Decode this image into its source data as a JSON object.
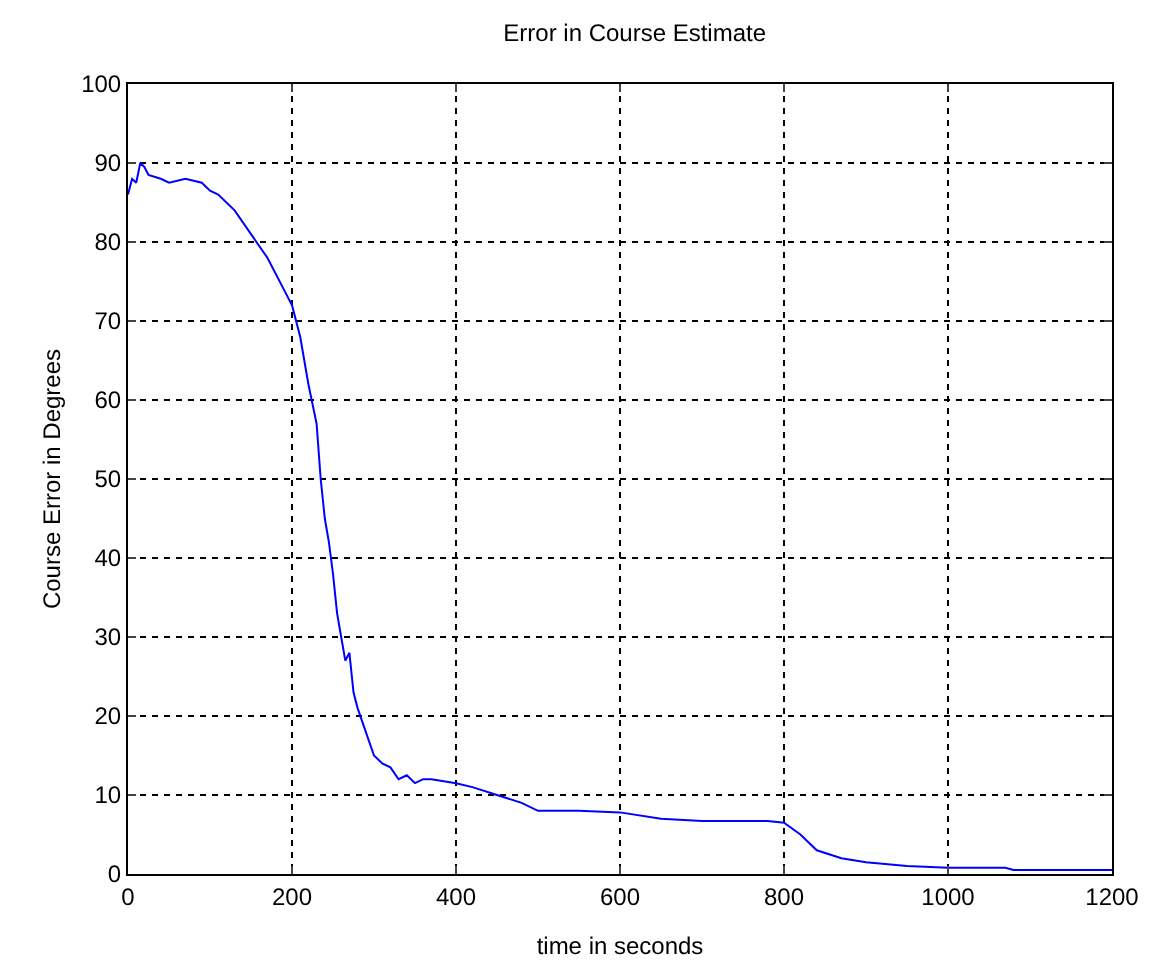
{
  "chart_data": {
    "type": "line",
    "title": "Error in Course Estimate",
    "xlabel": "time in seconds",
    "ylabel": "Course Error in Degrees",
    "x": [
      0,
      5,
      10,
      15,
      20,
      25,
      40,
      50,
      70,
      90,
      100,
      110,
      130,
      150,
      170,
      190,
      200,
      210,
      220,
      230,
      235,
      240,
      245,
      250,
      255,
      260,
      265,
      270,
      275,
      280,
      290,
      300,
      310,
      320,
      330,
      340,
      350,
      360,
      370,
      400,
      420,
      450,
      480,
      500,
      550,
      600,
      650,
      700,
      780,
      800,
      820,
      840,
      870,
      900,
      950,
      1000,
      1070,
      1080,
      1200
    ],
    "series": [
      {
        "color": "#0000ff",
        "values": [
          86,
          88,
          87.5,
          90,
          89.5,
          88.5,
          88,
          87.5,
          88,
          87.5,
          86.5,
          86,
          84,
          81,
          78,
          74,
          72,
          68,
          62,
          57,
          50,
          45,
          42,
          38,
          33,
          30,
          27,
          28,
          23,
          21,
          18,
          15,
          14,
          13.5,
          12,
          12.5,
          11.5,
          12,
          12,
          11.5,
          11,
          10,
          9,
          8,
          8,
          7.8,
          7,
          6.7,
          6.7,
          6.5,
          5,
          3,
          2,
          1.5,
          1,
          0.8,
          0.8,
          0.5,
          0.5
        ]
      }
    ],
    "xlim": [
      0,
      1200
    ],
    "xticks": [
      0,
      200,
      400,
      600,
      800,
      1000,
      1200
    ],
    "ylim": [
      0,
      100
    ],
    "yticks": [
      0,
      10,
      20,
      30,
      40,
      50,
      60,
      70,
      80,
      90,
      100
    ],
    "grid": true,
    "line_style": "solid"
  }
}
